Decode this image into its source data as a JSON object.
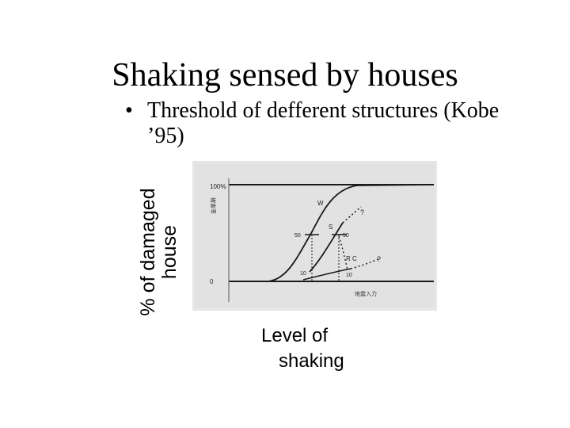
{
  "slide": {
    "title": "Shaking sensed by houses",
    "bullet": "Threshold of defferent structures (Kobe ’95)",
    "bullet_marker": "•"
  },
  "axes": {
    "ylabel_line1": "% of damaged",
    "ylabel_line2": "house",
    "xlabel_line1": "Level of",
    "xlabel_line2": "shaking"
  },
  "figure": {
    "top_tick": "100%",
    "bottom_tick": "0",
    "y_axis_caption": "被害率",
    "x_axis_caption": "地震入力",
    "curve_w": "W",
    "curve_s": "S",
    "curve_rc": "R C",
    "mark_50_left": "50",
    "mark_50_right": "50",
    "mark_10_left": "10",
    "mark_10_right": "10",
    "unknown_1": "?",
    "unknown_2": "?"
  },
  "colors": {
    "paper": "#e6e6e6",
    "ink": "#1a1a1a"
  }
}
